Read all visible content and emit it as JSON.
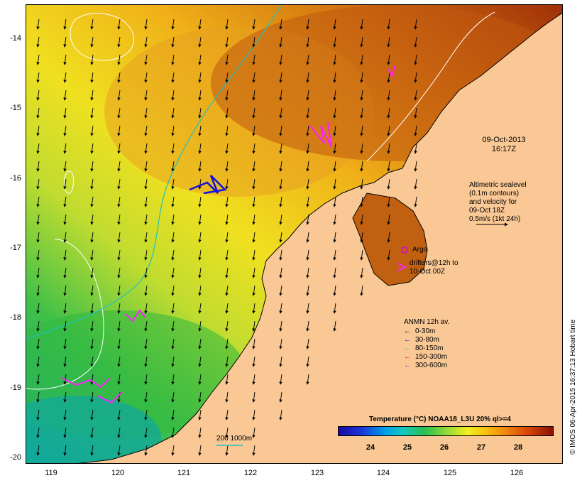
{
  "map": {
    "date_label_line1": "09-Oct-2013",
    "date_label_line2": "16:17Z",
    "altimetry_note": [
      "Altimetric sealevel",
      "(0.1m contours)",
      "and velocity for",
      "09-Oct 18Z",
      "0.5m/s (1kt 24h)"
    ],
    "argo_label": "Argo",
    "drifter_label": [
      "drifters@12h to",
      "10-Oct 00Z"
    ],
    "depth_label": "200  1000m",
    "colors": {
      "land": "#f9c895",
      "warm_sea": "#e8a030",
      "shelf_contour": "#20c0c0",
      "sealevel_contour": "#ffffff",
      "argo": "#e000e0",
      "drifter": "#ff20ff",
      "mooring_blue": "#1010e0"
    }
  },
  "axes": {
    "lat_ticks": [
      "-14",
      "-15",
      "-16",
      "-17",
      "-18",
      "-19",
      "-20"
    ],
    "lon_ticks": [
      "119",
      "120",
      "121",
      "122",
      "123",
      "124",
      "125",
      "126"
    ],
    "lat_range": [
      -20.05,
      -13.55
    ],
    "lon_range": [
      118.6,
      126.7
    ]
  },
  "legend": {
    "title": "ANMN 12h av.",
    "items": [
      {
        "label": "0-30m",
        "color": "#000000"
      },
      {
        "label": "30-80m",
        "color": "#0000e0"
      },
      {
        "label": "80-150m",
        "color": "#20c0c0"
      },
      {
        "label": "150-300m",
        "color": "#e00000"
      },
      {
        "label": "300-600m",
        "color": "#e000e0"
      }
    ]
  },
  "colorbar": {
    "title": "Temperature (°C) NOAA18_L3U 20% ql>=4",
    "ticks": [
      "24",
      "25",
      "26",
      "27",
      "28"
    ],
    "range": [
      23.3,
      28.7
    ]
  },
  "stamp": "© IMOS 06-Apr-2015 16:37:13 Hobart time"
}
